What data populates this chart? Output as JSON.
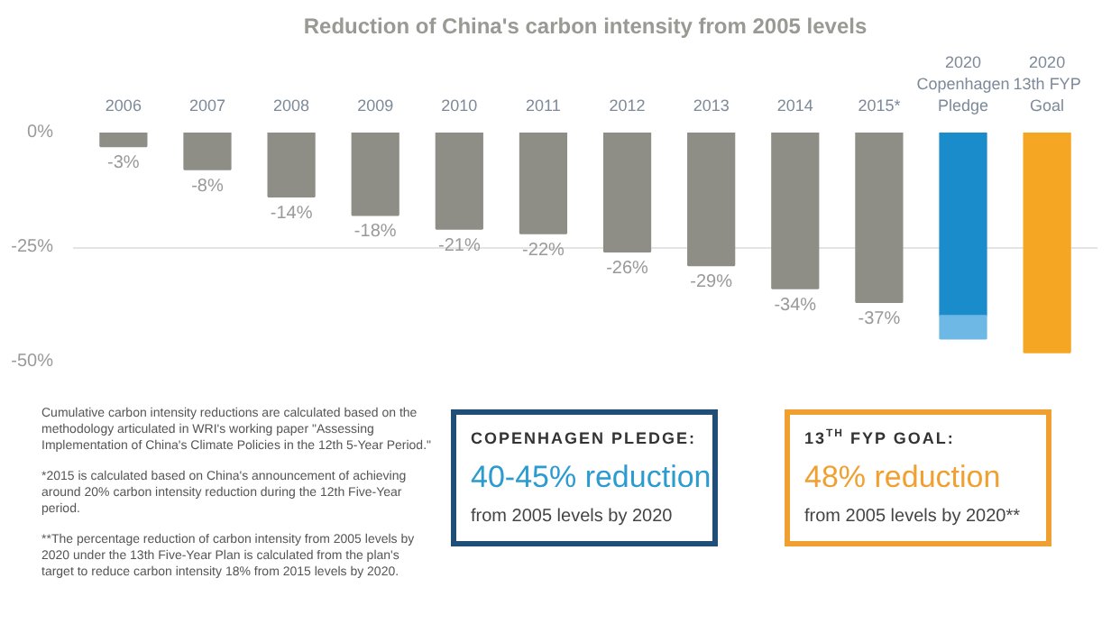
{
  "chart_data": {
    "type": "bar",
    "title": "Reduction of China's carbon intensity from 2005 levels",
    "categories": [
      "2006",
      "2007",
      "2008",
      "2009",
      "2010",
      "2011",
      "2012",
      "2013",
      "2014",
      "2015*",
      "2020\nCopenhagen\nPledge",
      "2020\n13th FYP\nGoal"
    ],
    "stacked": true,
    "series": [
      {
        "colors": [
          "#8e8e86",
          "#8e8e86",
          "#8e8e86",
          "#8e8e86",
          "#8e8e86",
          "#8e8e86",
          "#8e8e86",
          "#8e8e86",
          "#8e8e86",
          "#8e8e86",
          "#1a8ccc",
          "#f5a623"
        ],
        "values": [
          -3,
          -8,
          -14,
          -18,
          -21,
          -22,
          -26,
          -29,
          -34,
          -37,
          -40,
          -48
        ],
        "value_labels": [
          "-3%",
          "-8%",
          "-14%",
          "-18%",
          "-21%",
          "-22%",
          "-26%",
          "-29%",
          "-34%",
          "-37%",
          null,
          null
        ]
      },
      {
        "colors": [
          "#8e8e86",
          "#8e8e86",
          "#8e8e86",
          "#8e8e86",
          "#8e8e86",
          "#8e8e86",
          "#8e8e86",
          "#8e8e86",
          "#8e8e86",
          "#8e8e86",
          "#6db8e4",
          "#f5a623"
        ],
        "values": [
          null,
          null,
          null,
          null,
          null,
          null,
          null,
          null,
          null,
          null,
          -5,
          null
        ]
      }
    ],
    "ylim": [
      -50,
      0
    ],
    "yticks": [
      {
        "value": 0,
        "label": "0%"
      },
      {
        "value": -25,
        "label": "-25%"
      },
      {
        "value": -50,
        "label": "-50%"
      }
    ],
    "grid": "y",
    "annotations": [
      "Cumulative carbon intensity reductions are calculated based on the methodology articulated in WRI's working paper \"Assessing Implementation of China's Climate Policies in the 12th 5-Year Period.\"",
      "*2015 is calculated based on China's announcement of achieving around 20% carbon intensity reduction during the 12th Five-Year period.",
      "**The percentage reduction of carbon intensity from 2005 levels by 2020 under the 13th Five-Year Plan is calculated from the plan's target to reduce carbon intensity 18% from 2015 levels by 2020.",
      "COPENHAGEN PLEDGE:",
      "40-45% reduction",
      "from 2005 levels by 2020",
      "13$^{TH}$ FYP GOAL:",
      "48% reduction",
      "from 2005 levels by 2020**"
    ]
  }
}
